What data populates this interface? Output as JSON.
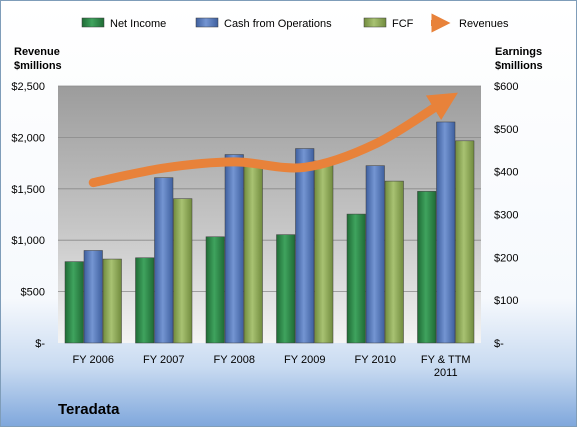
{
  "chart_data": {
    "type": "bar",
    "company": "Teradata",
    "categories": [
      [
        "FY 2006"
      ],
      [
        "FY 2007"
      ],
      [
        "FY 2008"
      ],
      [
        "FY 2009"
      ],
      [
        "FY 2010"
      ],
      [
        "FY & TTM",
        "2011"
      ]
    ],
    "y_left": {
      "title_lines": [
        "Revenue",
        "$millions"
      ],
      "ticks": [
        "$-",
        "$500",
        "$1,000",
        "$1,500",
        "$2,000",
        "$2,500"
      ],
      "range": [
        0,
        2500
      ]
    },
    "y_right": {
      "title_lines": [
        "Earnings",
        "$millions"
      ],
      "ticks": [
        "$-",
        "$100",
        "$200",
        "$300",
        "$400",
        "$500",
        "$600"
      ],
      "range": [
        0,
        600
      ]
    },
    "series": [
      {
        "name": "Net Income",
        "type": "bar",
        "axis": "right",
        "color": "#2E8B4A",
        "values": [
          190,
          199,
          248,
          253,
          301,
          354
        ]
      },
      {
        "name": "Cash from Operations",
        "type": "bar",
        "axis": "right",
        "color": "#5A7FBF",
        "values": [
          216,
          386,
          440,
          454,
          414,
          516
        ]
      },
      {
        "name": "FCF",
        "type": "bar",
        "axis": "right",
        "color": "#93AE5E",
        "values": [
          196,
          337,
          421,
          425,
          378,
          472
        ]
      },
      {
        "name": "Revenues",
        "type": "line",
        "axis": "left",
        "color": "#E8823A",
        "values": [
          1560,
          1702,
          1762,
          1709,
          1936,
          2362
        ]
      }
    ],
    "legend_position": "top",
    "grid": true
  }
}
